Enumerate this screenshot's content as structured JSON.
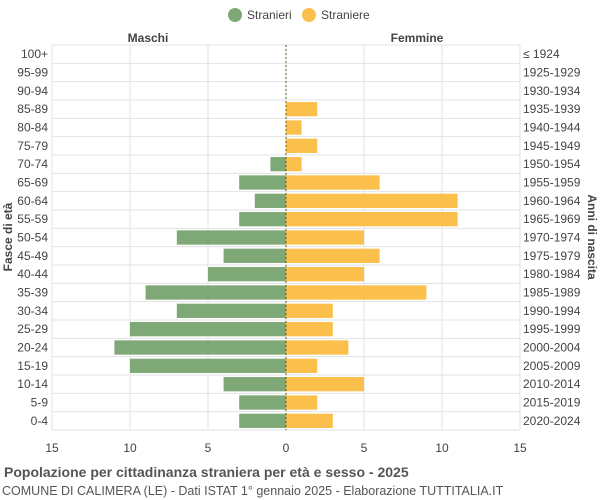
{
  "footer": {
    "title": "Popolazione per cittadinanza straniera per età e sesso - 2025",
    "subtitle": "COMUNE DI CALIMERA (LE) - Dati ISTAT 1° gennaio 2025 - Elaborazione TUTTITALIA.IT"
  },
  "colors": {
    "male": "#7fa877",
    "female": "#fbbf4b",
    "grid": "#e3e3e3",
    "center": "#55602a"
  },
  "chart_data": {
    "type": "bar",
    "orientation": "horizontal-population-pyramid",
    "header_left": "Maschi",
    "header_right": "Femmine",
    "ylabel_left": "Fasce di età",
    "ylabel_right": "Anni di nascita",
    "xlim": [
      -15,
      15
    ],
    "x_ticks": [
      "15",
      "10",
      "5",
      "0",
      "5",
      "10",
      "15"
    ],
    "grid": true,
    "legend_placement": "top-center",
    "age_groups": [
      "100+",
      "95-99",
      "90-94",
      "85-89",
      "80-84",
      "75-79",
      "70-74",
      "65-69",
      "60-64",
      "55-59",
      "50-54",
      "45-49",
      "40-44",
      "35-39",
      "30-34",
      "25-29",
      "20-24",
      "15-19",
      "10-14",
      "5-9",
      "0-4"
    ],
    "birth_years": [
      "≤ 1924",
      "1925-1929",
      "1930-1934",
      "1935-1939",
      "1940-1944",
      "1945-1949",
      "1950-1954",
      "1955-1959",
      "1960-1964",
      "1965-1969",
      "1970-1974",
      "1975-1979",
      "1980-1984",
      "1985-1989",
      "1990-1994",
      "1995-1999",
      "2000-2004",
      "2005-2009",
      "2010-2014",
      "2015-2019",
      "2020-2024"
    ],
    "series": [
      {
        "name": "Stranieri",
        "side": "left",
        "values": [
          0,
          0,
          0,
          0,
          0,
          0,
          1,
          3,
          2,
          3,
          7,
          4,
          5,
          9,
          7,
          10,
          11,
          10,
          4,
          3,
          3
        ]
      },
      {
        "name": "Straniere",
        "side": "right",
        "values": [
          0,
          0,
          0,
          2,
          1,
          2,
          1,
          6,
          11,
          11,
          5,
          6,
          5,
          9,
          3,
          3,
          4,
          2,
          5,
          2,
          3
        ]
      }
    ]
  }
}
